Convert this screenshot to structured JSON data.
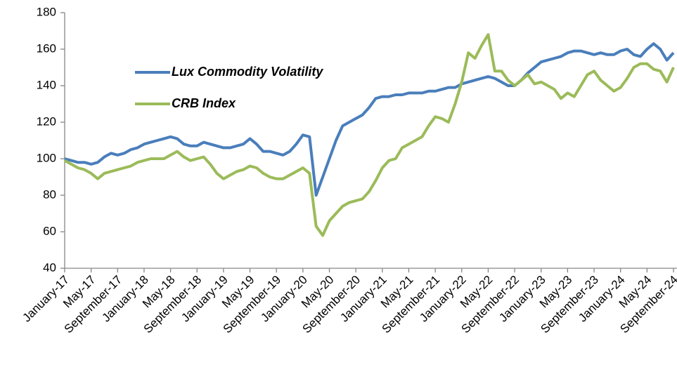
{
  "chart_data": {
    "type": "line",
    "categories": [
      "January-17",
      null,
      null,
      null,
      "May-17",
      null,
      null,
      null,
      "September-17",
      null,
      null,
      null,
      "January-18",
      null,
      null,
      null,
      "May-18",
      null,
      null,
      null,
      "September-18",
      null,
      null,
      null,
      "January-19",
      null,
      null,
      null,
      "May-19",
      null,
      null,
      null,
      "September-19",
      null,
      null,
      null,
      "January-20",
      null,
      null,
      null,
      "May-20",
      null,
      null,
      null,
      "September-20",
      null,
      null,
      null,
      "January-21",
      null,
      null,
      null,
      "May-21",
      null,
      null,
      null,
      "September-21",
      null,
      null,
      null,
      "January-22",
      null,
      null,
      null,
      "May-22",
      null,
      null,
      null,
      "September-22",
      null,
      null,
      null,
      "January-23",
      null,
      null,
      null,
      "May-23",
      null,
      null,
      null,
      "September-23",
      null,
      null,
      null,
      "January-24",
      null,
      null,
      null,
      "May-24",
      null,
      null,
      null,
      "September-24"
    ],
    "series": [
      {
        "name": "Lux Commodity Volatility",
        "color": "#4a7ebb",
        "values": [
          100,
          99,
          98,
          98,
          97,
          98,
          101,
          103,
          102,
          103,
          105,
          106,
          108,
          109,
          110,
          111,
          112,
          111,
          108,
          107,
          107,
          109,
          108,
          107,
          106,
          106,
          107,
          108,
          111,
          108,
          104,
          104,
          103,
          102,
          104,
          108,
          113,
          112,
          80,
          90,
          100,
          110,
          118,
          120,
          122,
          124,
          128,
          133,
          134,
          134,
          135,
          135,
          136,
          136,
          136,
          137,
          137,
          138,
          139,
          139,
          141,
          142,
          143,
          144,
          145,
          144,
          142,
          140,
          140,
          143,
          147,
          150,
          153,
          154,
          155,
          156,
          158,
          159,
          159,
          158,
          157,
          158,
          157,
          157,
          159,
          160,
          157,
          156,
          160,
          163,
          160,
          154,
          158
        ]
      },
      {
        "name": "CRB Index",
        "color": "#9bbb59",
        "values": [
          99,
          97,
          95,
          94,
          92,
          89,
          92,
          93,
          94,
          95,
          96,
          98,
          99,
          100,
          100,
          100,
          102,
          104,
          101,
          99,
          100,
          101,
          97,
          92,
          89,
          91,
          93,
          94,
          96,
          95,
          92,
          90,
          89,
          89,
          91,
          93,
          95,
          92,
          63,
          58,
          66,
          70,
          74,
          76,
          77,
          78,
          82,
          88,
          95,
          99,
          100,
          106,
          108,
          110,
          112,
          118,
          123,
          122,
          120,
          130,
          142,
          158,
          155,
          162,
          168,
          148,
          148,
          143,
          140,
          143,
          146,
          141,
          142,
          140,
          138,
          133,
          136,
          134,
          140,
          146,
          148,
          143,
          140,
          137,
          139,
          144,
          150,
          152,
          152,
          149,
          148,
          142,
          150
        ]
      }
    ],
    "ylim": [
      40,
      180
    ],
    "yticks": [
      40,
      60,
      80,
      100,
      120,
      140,
      160,
      180
    ],
    "grid": false,
    "legend": "upper left"
  }
}
